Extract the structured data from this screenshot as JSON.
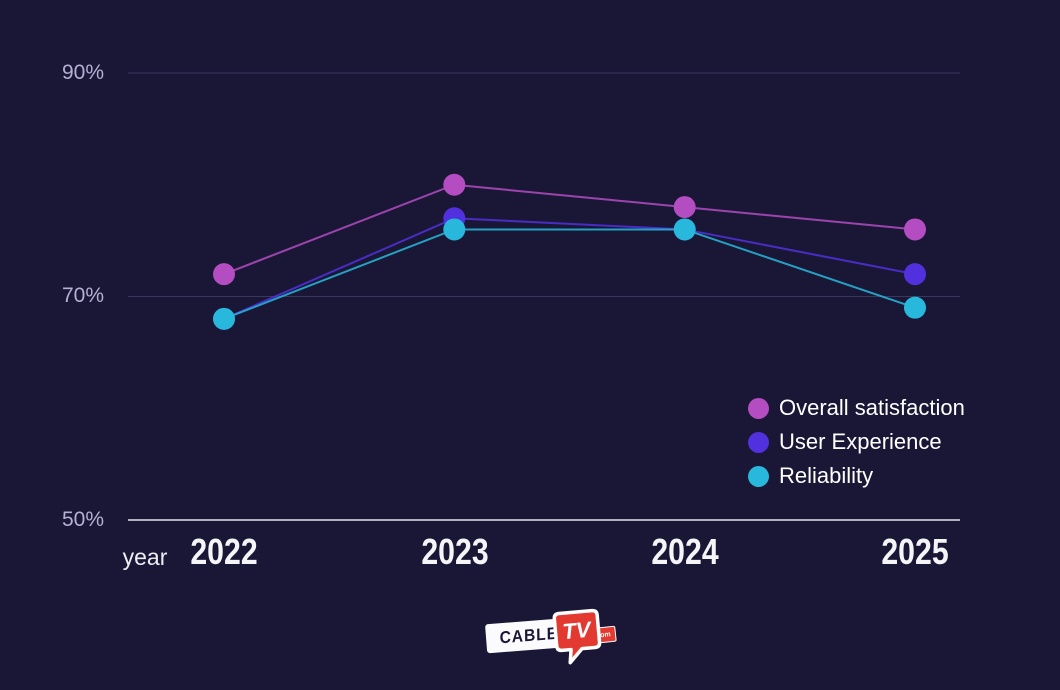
{
  "page": {
    "background": "#1a1736"
  },
  "chart_data": {
    "type": "line",
    "title": "",
    "categories": [
      "2022",
      "2023",
      "2024",
      "2025"
    ],
    "series": [
      {
        "name": "Overall satisfaction",
        "color": "#b44cc2",
        "values": [
          72,
          80,
          78,
          76
        ]
      },
      {
        "name": "User Experience",
        "color": "#5130dd",
        "values": [
          68,
          77,
          76,
          72
        ]
      },
      {
        "name": "Reliability",
        "color": "#28b8dc",
        "values": [
          68,
          76,
          76,
          69
        ]
      }
    ],
    "xlabel": "year",
    "ylabel": "",
    "ylim": [
      50,
      90
    ],
    "yticks": [
      50,
      70,
      90
    ],
    "ytick_labels": [
      "50%",
      "70%",
      "90%"
    ],
    "grid": "horizontal",
    "gridline_color": "#393660",
    "axisline_color": "#e6e6ef",
    "legend_position": "right"
  },
  "logo": {
    "cable": "CABLE",
    "tv": "TV",
    "tld": ".com"
  }
}
